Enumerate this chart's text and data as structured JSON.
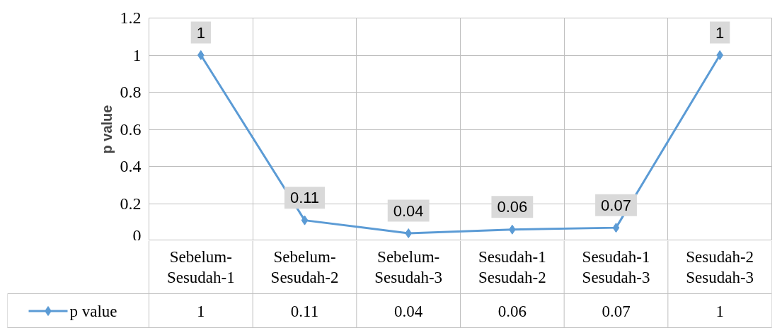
{
  "chart_data": {
    "type": "line",
    "ylabel": "p value",
    "categories": [
      "Sebelum-Sesudah-1",
      "Sebelum-Sesudah-2",
      "Sebelum-Sesudah-3",
      "Sesudah-1 Sesudah-2",
      "Sesudah-1 Sesudah-3",
      "Sesudah-2 Sesudah-3"
    ],
    "series": [
      {
        "name": "p value",
        "color": "#5b9bd5",
        "values": [
          1,
          0.11,
          0.04,
          0.06,
          0.07,
          1
        ],
        "value_labels": [
          "1",
          "0.11",
          "0.04",
          "0.06",
          "0.07",
          "1"
        ]
      }
    ],
    "ylim": [
      0,
      1.2
    ],
    "yticks": [
      0,
      0.2,
      0.4,
      0.6,
      0.8,
      1,
      1.2
    ],
    "annotations": [
      "1",
      "0.11",
      "0.04",
      "0.06",
      "0.07",
      "1"
    ],
    "grid": true,
    "legend": "bottom",
    "marker": "diamond",
    "line_style": "solid"
  }
}
